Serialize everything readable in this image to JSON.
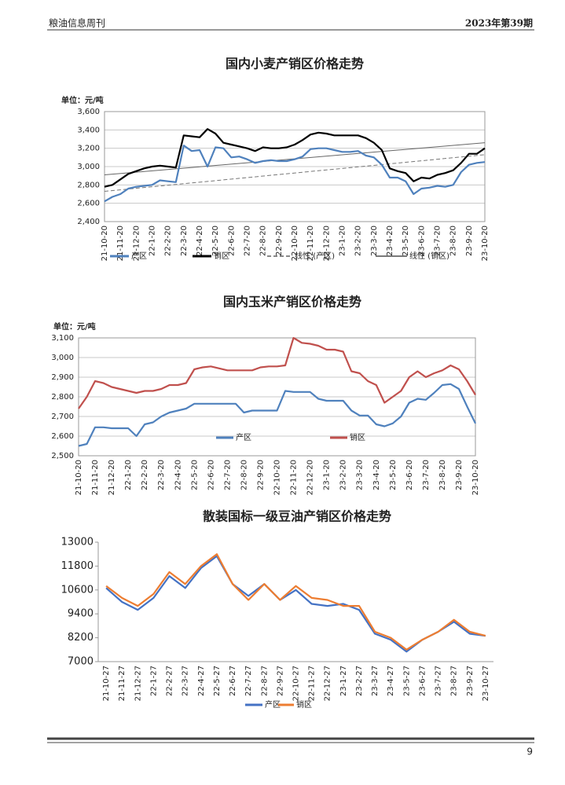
{
  "header": {
    "left": "粮油信息周刊",
    "right": "2023年第39期"
  },
  "chart_data": [
    {
      "type": "line",
      "title": "国内小麦产销区价格走势",
      "unit_label": "单位：元/吨",
      "categories": [
        "21-10-20",
        null,
        "21-11-20",
        null,
        "21-12-20",
        null,
        "22-1-20",
        null,
        "22-2-20",
        null,
        "22-3-20",
        null,
        "22-4-20",
        null,
        "22-5-20",
        null,
        "22-6-20",
        null,
        "22-7-20",
        null,
        "22-8-20",
        null,
        "22-9-20",
        null,
        "22-10-20",
        null,
        "22-11-20",
        null,
        "22-12-20",
        null,
        "23-1-20",
        null,
        "23-2-20",
        null,
        "23-3-20",
        null,
        "23-4-20",
        null,
        "23-5-20",
        null,
        "23-6-20",
        null,
        "23-7-20",
        null,
        "23-8-20",
        null,
        "23-9-20",
        null,
        "23-10-20"
      ],
      "series": [
        {
          "name": "产区",
          "color": "#4f81bd",
          "values": [
            2620,
            2670,
            2700,
            2760,
            2780,
            2790,
            2800,
            2850,
            2840,
            2830,
            3230,
            3170,
            3180,
            3000,
            3210,
            3200,
            3100,
            3110,
            3080,
            3040,
            3060,
            3070,
            3060,
            3060,
            3080,
            3110,
            3190,
            3200,
            3200,
            3180,
            3160,
            3160,
            3170,
            3120,
            3100,
            3020,
            2880,
            2880,
            2840,
            2700,
            2760,
            2770,
            2790,
            2780,
            2800,
            2940,
            3020,
            3040,
            3050
          ]
        },
        {
          "name": "销区",
          "color": "#000000",
          "values": [
            2780,
            2800,
            2860,
            2920,
            2950,
            2980,
            3000,
            3010,
            3000,
            2990,
            3340,
            3330,
            3320,
            3410,
            3360,
            3260,
            3240,
            3220,
            3200,
            3170,
            3210,
            3200,
            3200,
            3210,
            3240,
            3290,
            3350,
            3370,
            3360,
            3340,
            3340,
            3340,
            3340,
            3310,
            3260,
            3180,
            2980,
            2950,
            2930,
            2840,
            2880,
            2870,
            2910,
            2930,
            2960,
            3040,
            3140,
            3140,
            3200
          ]
        }
      ],
      "trendlines": [
        {
          "name": "线性 (产区)",
          "color": "#777777",
          "dashed": true,
          "values": [
            2730,
            3130
          ]
        },
        {
          "name": "线性 (销区)",
          "color": "#666666",
          "dashed": false,
          "values": [
            2910,
            3260
          ]
        }
      ],
      "ylim": [
        2400,
        3600
      ],
      "yticks": [
        {
          "value": 2400,
          "label": "2,400"
        },
        {
          "value": 2600,
          "label": "2,600"
        },
        {
          "value": 2800,
          "label": "2,800"
        },
        {
          "value": 3000,
          "label": "3,000"
        },
        {
          "value": 3200,
          "label": "3,200"
        },
        {
          "value": 3400,
          "label": "3,400"
        },
        {
          "value": 3600,
          "label": "3,600"
        }
      ],
      "grid": true,
      "legend": "bottom"
    },
    {
      "type": "line",
      "title": "国内玉米产销区价格走势",
      "unit_label": "单位：元/吨",
      "categories": [
        "21-10-20",
        null,
        "21-11-20",
        null,
        "21-12-20",
        null,
        "22-1-20",
        null,
        "22-2-20",
        null,
        "22-3-20",
        null,
        "22-4-20",
        null,
        "22-5-20",
        null,
        "22-6-20",
        null,
        "22-7-20",
        null,
        "22-8-20",
        null,
        "22-9-20",
        null,
        "22-10-20",
        null,
        "22-11-20",
        null,
        "22-12-20",
        null,
        "23-1-20",
        null,
        "23-2-20",
        null,
        "23-3-20",
        null,
        "23-4-20",
        null,
        "23-5-20",
        null,
        "23-6-20",
        null,
        "23-7-20",
        null,
        "23-8-20",
        null,
        "23-9-20",
        null,
        "23-10-20"
      ],
      "series": [
        {
          "name": "产区",
          "color": "#4f81bd",
          "values": [
            2550,
            2560,
            2645,
            2645,
            2640,
            2640,
            2640,
            2600,
            2660,
            2670,
            2700,
            2720,
            2730,
            2740,
            2765,
            2765,
            2765,
            2765,
            2765,
            2765,
            2720,
            2730,
            2730,
            2730,
            2730,
            2830,
            2825,
            2825,
            2825,
            2790,
            2780,
            2780,
            2780,
            2730,
            2705,
            2705,
            2660,
            2650,
            2665,
            2700,
            2770,
            2790,
            2785,
            2820,
            2860,
            2865,
            2840,
            2750,
            2665
          ]
        },
        {
          "name": "销区",
          "color": "#c0504d",
          "values": [
            2740,
            2800,
            2880,
            2870,
            2850,
            2840,
            2830,
            2820,
            2830,
            2830,
            2840,
            2860,
            2860,
            2870,
            2940,
            2950,
            2955,
            2945,
            2935,
            2935,
            2935,
            2935,
            2950,
            2955,
            2955,
            2960,
            3100,
            3075,
            3070,
            3060,
            3040,
            3040,
            3030,
            2930,
            2920,
            2880,
            2860,
            2770,
            2800,
            2830,
            2900,
            2930,
            2900,
            2920,
            2935,
            2960,
            2940,
            2880,
            2810
          ]
        }
      ],
      "ylim": [
        2500,
        3100
      ],
      "yticks": [
        {
          "value": 2500,
          "label": "2,500"
        },
        {
          "value": 2600,
          "label": "2,600"
        },
        {
          "value": 2700,
          "label": "2,700"
        },
        {
          "value": 2800,
          "label": "2,800"
        },
        {
          "value": 2900,
          "label": "2,900"
        },
        {
          "value": 3000,
          "label": "3,000"
        },
        {
          "value": 3100,
          "label": "3,100"
        }
      ],
      "grid": true,
      "legend": "inside-bottom"
    },
    {
      "type": "line",
      "title": "散装国标一级豆油产销区价格走势",
      "categories": [
        "21-10-27",
        "21-11-27",
        "21-12-27",
        "22-1-27",
        "22-2-27",
        "22-3-27",
        "22-4-27",
        "22-5-27",
        "22-6-27",
        "22-7-27",
        "22-8-27",
        "22-9-27",
        "22-10-27",
        "22-11-27",
        "22-12-27",
        "23-1-27",
        "23-2-27",
        "23-3-27",
        "23-4-27",
        "23-5-27",
        "23-6-27",
        "23-7-27",
        "23-8-27",
        "23-9-27",
        "23-10-27"
      ],
      "series": [
        {
          "name": "产区",
          "color": "#4472c4",
          "values": [
            10700,
            10000,
            9600,
            10200,
            11300,
            10700,
            11700,
            12300,
            10900,
            10300,
            10900,
            10100,
            10600,
            9900,
            9800,
            9900,
            9600,
            8400,
            8100,
            7500,
            8100,
            8500,
            9000,
            8400,
            8300
          ]
        },
        {
          "name": "销区",
          "color": "#ed7d31",
          "values": [
            10800,
            10200,
            9800,
            10400,
            11500,
            10900,
            11800,
            12400,
            10900,
            10100,
            10900,
            10100,
            10800,
            10200,
            10100,
            9800,
            9800,
            8500,
            8200,
            7600,
            8100,
            8500,
            9100,
            8500,
            8300
          ]
        }
      ],
      "ylim": [
        7000,
        13000
      ],
      "yticks": [
        7000,
        8200,
        9400,
        10600,
        11800,
        13000
      ],
      "grid": false,
      "legend": "bottom"
    }
  ],
  "page_number": "9"
}
